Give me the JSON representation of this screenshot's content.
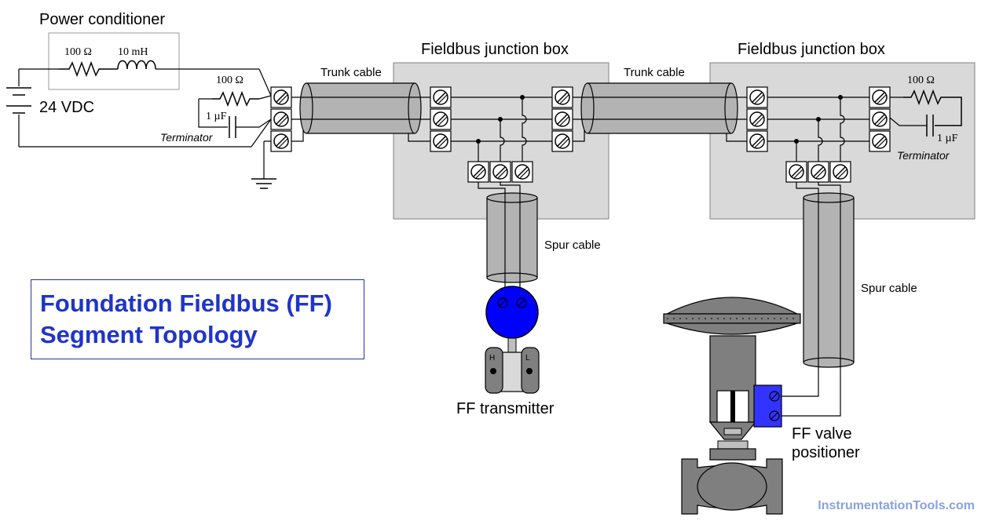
{
  "labels": {
    "power_conditioner": "Power conditioner",
    "resistor_pc": "100 Ω",
    "inductor_pc": "10 mH",
    "supply": "24 VDC",
    "resistor_term_left": "100 Ω",
    "cap_term_left": "1 µF",
    "terminator_left": "Terminator",
    "junction_box_1": "Fieldbus junction box",
    "junction_box_2": "Fieldbus junction box",
    "trunk_cable_1": "Trunk cable",
    "trunk_cable_2": "Trunk cable",
    "resistor_term_right": "100 Ω",
    "cap_term_right": "1 µF",
    "terminator_right": "Terminator",
    "spur_cable_1": "Spur cable",
    "spur_cable_2": "Spur cable",
    "transmitter": "FF transmitter",
    "transmitter_h": "H",
    "transmitter_l": "L",
    "positioner_line1": "FF valve",
    "positioner_line2": "positioner"
  },
  "title": {
    "line1": "Foundation Fieldbus (FF)",
    "line2": "Segment Topology"
  },
  "watermark": "InstrumentationTools.com",
  "colors": {
    "title": "#1f35c8",
    "box_fill": "#d9d9d9",
    "cable_fill": "#b3b3b3",
    "transmitter_blue": "#0000ff",
    "positioner_blue": "#3333ff",
    "valve_gray": "#7f7f7f",
    "watermark": "#8aa0e0"
  }
}
